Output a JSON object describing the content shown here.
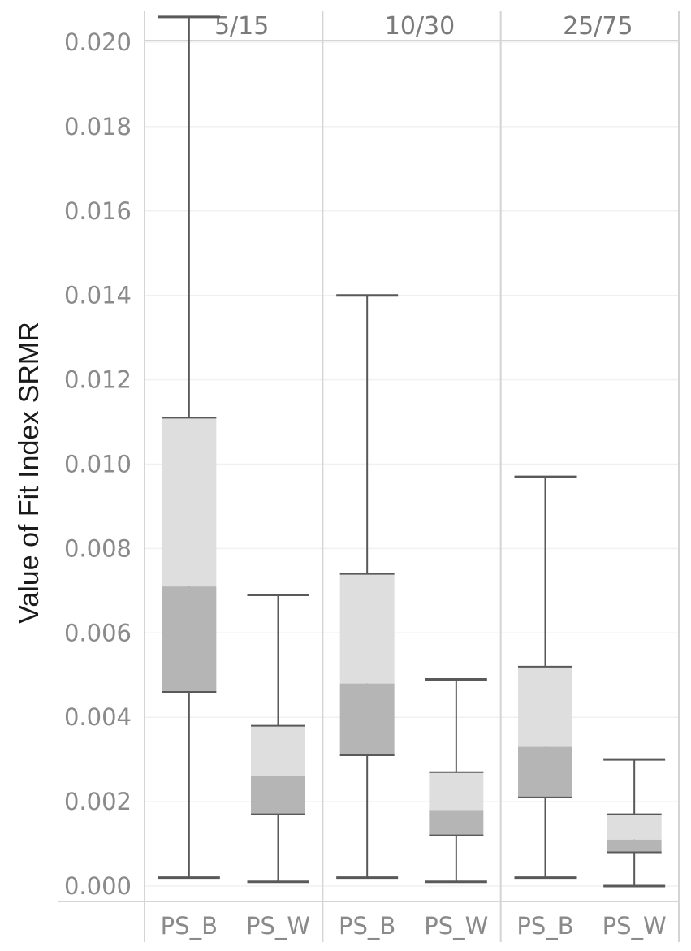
{
  "chart_data": {
    "type": "boxplot",
    "ylabel": "Value of Fit Index SRMR",
    "ylim": [
      0.0,
      0.0205
    ],
    "yticks": [
      "0.000",
      "0.002",
      "0.004",
      "0.006",
      "0.008",
      "0.010",
      "0.012",
      "0.014",
      "0.016",
      "0.018",
      "0.020"
    ],
    "ytick_values": [
      0.0,
      0.002,
      0.004,
      0.006,
      0.008,
      0.01,
      0.012,
      0.014,
      0.016,
      0.018,
      0.02
    ],
    "grid": true,
    "colors": {
      "upper_box": "#dedede",
      "lower_box": "#b5b5b5",
      "whisker": "#595959",
      "grid": "#f0f0f0",
      "divider": "#d4d4d4",
      "tick_text": "#8a8a8a"
    },
    "facets": [
      {
        "label": "5/15",
        "boxes": [
          {
            "category": "PS_B",
            "min": 0.0002,
            "q1": 0.0046,
            "median": 0.0071,
            "q3": 0.0111,
            "max": 0.0206
          },
          {
            "category": "PS_W",
            "min": 0.0001,
            "q1": 0.0017,
            "median": 0.0026,
            "q3": 0.0038,
            "max": 0.0069
          }
        ]
      },
      {
        "label": "10/30",
        "boxes": [
          {
            "category": "PS_B",
            "min": 0.0002,
            "q1": 0.0031,
            "median": 0.0048,
            "q3": 0.0074,
            "max": 0.014
          },
          {
            "category": "PS_W",
            "min": 0.0001,
            "q1": 0.0012,
            "median": 0.0018,
            "q3": 0.0027,
            "max": 0.0049
          }
        ]
      },
      {
        "label": "25/75",
        "boxes": [
          {
            "category": "PS_B",
            "min": 0.0002,
            "q1": 0.0021,
            "median": 0.0033,
            "q3": 0.0052,
            "max": 0.0097
          },
          {
            "category": "PS_W",
            "min": 0.0,
            "q1": 0.0008,
            "median": 0.0011,
            "q3": 0.0017,
            "max": 0.003
          }
        ]
      }
    ]
  }
}
